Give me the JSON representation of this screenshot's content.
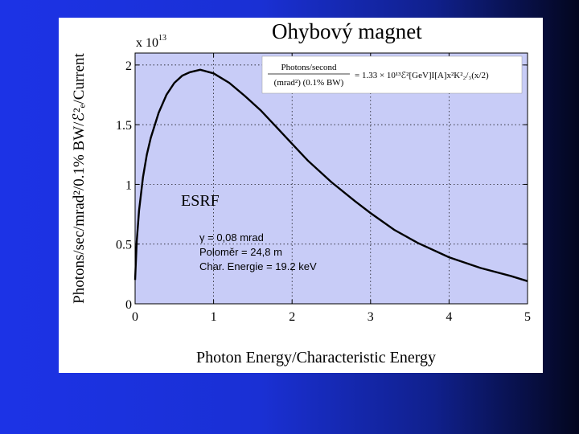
{
  "slide": {
    "title": "Ohybový magnet"
  },
  "colors": {
    "background_left": "#1c33e6",
    "background_right": "#03061e",
    "plot_fill": "#c8ccf7",
    "curve": "#000000"
  },
  "chart_data": {
    "type": "line",
    "xlabel": "Photon Energy/Characteristic Energy",
    "ylabel": "Photons/sec/mrad²/0.1% BW/ℰ²ₑ/Current",
    "y_exponent_label": "x 10",
    "y_exponent_power": "13",
    "xlim": [
      0,
      5
    ],
    "ylim": [
      0,
      2.1
    ],
    "x_ticks": [
      "0",
      "1",
      "2",
      "3",
      "4",
      "5"
    ],
    "y_ticks": [
      "0",
      "0.5",
      "1",
      "1.5",
      "2"
    ],
    "grid": "dotted",
    "series": [
      {
        "x": [
          0.0,
          0.02,
          0.05,
          0.1,
          0.15,
          0.2,
          0.3,
          0.4,
          0.5,
          0.6,
          0.7,
          0.83,
          1.0,
          1.2,
          1.4,
          1.6,
          1.8,
          2.0,
          2.2,
          2.5,
          2.8,
          3.0,
          3.3,
          3.6,
          4.0,
          4.4,
          4.8,
          5.0
        ],
        "y": [
          0.2,
          0.52,
          0.78,
          1.06,
          1.25,
          1.39,
          1.6,
          1.75,
          1.85,
          1.91,
          1.94,
          1.96,
          1.93,
          1.85,
          1.74,
          1.62,
          1.48,
          1.34,
          1.2,
          1.02,
          0.86,
          0.76,
          0.62,
          0.51,
          0.39,
          0.3,
          0.23,
          0.19
        ]
      }
    ],
    "formula_box": {
      "numerator": "Photons/second",
      "denominator": "(mrad²) (0.1% BW)",
      "rhs": "= 1.33 × 10¹³ℰ²[GeV]I[A]x²K²₂/₃(x/2)"
    },
    "annotations": {
      "facility": "ESRF",
      "lines": [
        "γ = 0,08 mrad",
        "Poloměr = 24,8 m",
        "Char. Energie = 19.2 keV"
      ]
    }
  }
}
